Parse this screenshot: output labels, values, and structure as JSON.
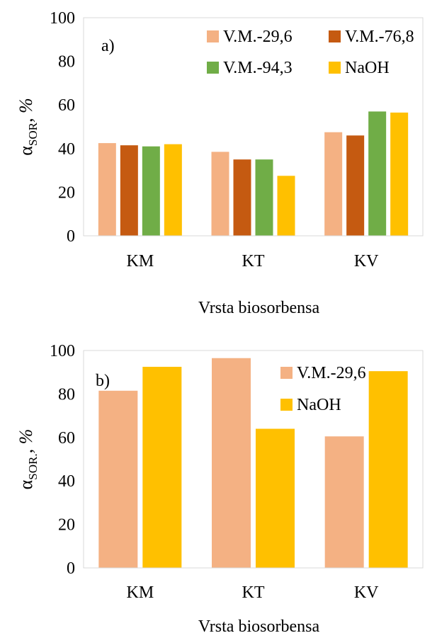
{
  "chart_data": [
    {
      "type": "bar",
      "panel_label": "a)",
      "categories": [
        "KM",
        "KT",
        "KV"
      ],
      "series": [
        {
          "name": "V.M.-29,6",
          "color": "#f4b183",
          "values": [
            42.5,
            38.5,
            47.5
          ]
        },
        {
          "name": "V.M.-76,8",
          "color": "#c55a11",
          "values": [
            41.5,
            35.0,
            46.0
          ]
        },
        {
          "name": "V.M.-94,3",
          "color": "#70ad47",
          "values": [
            41.0,
            35.0,
            57.0
          ]
        },
        {
          "name": "NaOH",
          "color": "#ffc000",
          "values": [
            42.0,
            27.5,
            56.5
          ]
        }
      ],
      "ylim": [
        0,
        100
      ],
      "yticks": [
        "0",
        "20",
        "40",
        "60",
        "80",
        "100"
      ],
      "ylabel": {
        "symbol": "α",
        "sub": "SOR",
        "rest": ", %"
      },
      "xlabel": "Vrsta biosorbensa",
      "grid": false,
      "legend": "top-right"
    },
    {
      "type": "bar",
      "panel_label": "b)",
      "categories": [
        "KM",
        "KT",
        "KV"
      ],
      "series": [
        {
          "name": "V.M.-29,6",
          "color": "#f4b183",
          "values": [
            81.5,
            96.5,
            60.5
          ]
        },
        {
          "name": "NaOH",
          "color": "#ffc000",
          "values": [
            92.5,
            64.0,
            90.5
          ]
        }
      ],
      "ylim": [
        0,
        100
      ],
      "yticks": [
        "0",
        "20",
        "40",
        "60",
        "80",
        "100"
      ],
      "ylabel": {
        "symbol": "α",
        "sub": "SOR.",
        "rest": ", %"
      },
      "xlabel": "Vrsta biosorbensa",
      "grid": false,
      "legend": "top-right"
    }
  ]
}
